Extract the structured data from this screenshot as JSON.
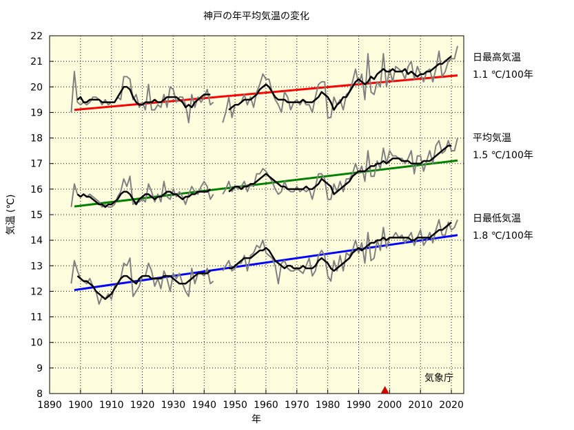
{
  "chart_data": {
    "type": "line",
    "title": "神戸の年平均気温の変化",
    "xlabel": "年",
    "ylabel": "気温 (℃)",
    "xlim": [
      1890,
      2024
    ],
    "ylim": [
      8,
      22
    ],
    "x_ticks": [
      1890,
      1900,
      1910,
      1920,
      1930,
      1940,
      1950,
      1960,
      1970,
      1980,
      1990,
      2000,
      2010,
      2020
    ],
    "y_ticks": [
      8,
      9,
      10,
      11,
      12,
      13,
      14,
      15,
      16,
      17,
      18,
      19,
      20,
      21,
      22
    ],
    "grid": true,
    "credit": "気象庁",
    "marker": {
      "x": 1998.5,
      "y": 8,
      "color": "#cc0000"
    },
    "series": [
      {
        "name": "日最高気温",
        "trend_label": "1.1 ℃/100年",
        "trend_color": "#ff0000",
        "trend": [
          [
            1898,
            19.1
          ],
          [
            2022,
            20.45
          ]
        ],
        "segments": [
          {
            "start": 1897,
            "values": [
              19.0,
              20.6,
              19.4,
              19.3,
              19.4,
              19.3,
              19.4,
              19.6,
              19.6,
              19.5,
              19.3,
              19.5,
              19.3,
              19.4,
              19.4,
              19.6,
              19.5,
              20.4,
              20.4,
              20.3,
              19.5,
              19.7,
              19.2,
              19.4,
              19.1,
              20.1,
              19.1,
              19.1,
              19.3,
              19.2,
              19.7,
              19.2,
              20.0,
              19.9,
              19.4,
              19.6,
              19.6,
              19.3,
              18.6,
              19.7,
              19.2,
              19.6,
              19.4,
              19.6,
              19.9,
              19.3,
              19.4
            ]
          },
          {
            "start": 1946,
            "values": [
              18.6,
              19.0,
              19.6,
              18.8,
              19.3,
              19.3,
              19.4,
              19.7,
              19.3,
              19.6,
              19.2,
              19.8,
              20.1,
              20.5,
              20.3,
              20.3,
              19.8,
              19.5,
              19.3,
              19.0,
              19.8,
              19.6,
              19.1,
              19.4,
              19.5,
              19.3,
              19.5,
              19.3,
              19.3,
              19.0,
              19.6,
              20.1,
              20.2,
              20.2,
              18.8,
              18.8,
              19.6,
              19.3,
              19.5,
              19.1,
              19.7,
              19.8,
              20.2,
              20.7,
              20.1,
              20.5,
              19.5,
              21.3,
              19.8,
              19.7,
              20.2,
              20.0,
              21.3,
              20.0,
              20.7,
              20.2,
              20.8,
              20.7,
              20.6,
              20.3,
              20.8,
              21.0,
              20.3,
              20.8,
              20.5,
              20.2,
              20.6,
              20.7,
              20.2,
              20.7,
              21.4,
              20.4,
              20.6,
              21.0,
              21.1,
              21.1,
              21.6
            ]
          }
        ],
        "moving_avg": [
          {
            "start": 1899,
            "values": [
              19.5,
              19.6,
              19.4,
              19.4,
              19.5,
              19.5,
              19.5,
              19.5,
              19.4,
              19.4,
              19.4,
              19.4,
              19.4,
              19.6,
              19.8,
              20.0,
              20.0,
              19.9,
              19.6,
              19.4,
              19.3,
              19.3,
              19.4,
              19.4,
              19.4,
              19.5,
              19.4,
              19.4,
              19.5,
              19.6,
              19.6,
              19.6,
              19.6,
              19.5,
              19.4,
              19.2,
              19.3,
              19.2,
              19.4,
              19.5,
              19.6,
              19.7,
              19.7,
              19.7
            ]
          },
          {
            "start": 1948,
            "values": [
              19.1,
              19.2,
              19.3,
              19.3,
              19.4,
              19.5,
              19.5,
              19.5,
              19.6,
              19.7,
              19.9,
              20.0,
              20.1,
              20.0,
              19.8,
              19.6,
              19.5,
              19.5,
              19.5,
              19.4,
              19.4,
              19.4,
              19.4,
              19.4,
              19.5,
              19.4,
              19.4,
              19.4,
              19.5,
              19.6,
              19.8,
              19.7,
              19.6,
              19.4,
              19.1,
              19.3,
              19.4,
              19.6,
              19.6,
              19.8,
              20.0,
              20.2,
              20.3,
              20.2,
              20.1,
              20.2,
              20.4,
              20.3,
              20.5,
              20.6,
              20.7,
              20.6,
              20.6,
              20.7,
              20.6,
              20.6,
              20.6,
              20.7,
              20.5,
              20.6,
              20.5,
              20.4,
              20.5,
              20.5,
              20.6,
              20.6,
              20.7,
              20.8,
              20.9,
              20.9,
              21.0,
              21.1,
              21.2
            ]
          }
        ]
      },
      {
        "name": "平均気温",
        "trend_label": "1.5 ℃/100年",
        "trend_color": "#008000",
        "trend": [
          [
            1898,
            15.32
          ],
          [
            2022,
            17.12
          ]
        ],
        "segments": [
          {
            "start": 1897,
            "values": [
              15.3,
              16.2,
              15.8,
              15.7,
              15.8,
              15.7,
              15.8,
              15.7,
              15.6,
              15.5,
              15.3,
              15.4,
              15.3,
              15.3,
              15.4,
              15.7,
              15.9,
              16.4,
              16.1,
              16.5,
              15.4,
              15.5,
              15.5,
              15.6,
              15.5,
              16.2,
              15.9,
              15.5,
              15.8,
              15.5,
              16.3,
              15.7,
              15.6,
              16.0,
              15.7,
              15.9,
              15.7,
              15.4,
              15.8,
              16.1,
              15.9,
              15.8,
              16.1,
              16.3,
              16.1,
              15.6,
              15.8
            ]
          },
          {
            "start": 1946,
            "values": [
              15.8,
              16.0,
              16.3,
              15.9,
              16.1,
              16.0,
              16.1,
              16.3,
              15.9,
              16.2,
              16.1,
              16.6,
              16.6,
              16.8,
              16.7,
              16.5,
              16.3,
              16.0,
              15.8,
              15.9,
              16.3,
              16.0,
              15.9,
              15.9,
              16.1,
              15.9,
              16.0,
              15.9,
              16.0,
              15.6,
              16.1,
              16.6,
              16.6,
              16.4,
              15.6,
              15.6,
              16.2,
              15.9,
              16.3,
              15.9,
              16.4,
              16.4,
              16.6,
              17.0,
              16.6,
              16.9,
              16.3,
              17.5,
              16.5,
              16.5,
              17.1,
              16.8,
              17.6,
              17.0,
              17.5,
              17.3,
              17.3,
              17.2,
              17.2,
              17.0,
              17.2,
              17.5,
              16.6,
              17.3,
              17.3,
              16.7,
              17.1,
              17.5,
              17.0,
              17.7,
              17.9,
              17.4,
              17.5,
              17.9,
              17.5,
              17.5,
              18.0
            ]
          }
        ],
        "moving_avg": [
          {
            "start": 1899,
            "values": [
              15.8,
              15.7,
              15.8,
              15.7,
              15.7,
              15.6,
              15.5,
              15.4,
              15.4,
              15.3,
              15.4,
              15.4,
              15.5,
              15.6,
              15.8,
              15.9,
              15.9,
              15.8,
              15.6,
              15.4,
              15.6,
              15.7,
              15.8,
              15.8,
              15.7,
              15.6,
              15.7,
              15.7,
              15.8,
              15.9,
              15.9,
              15.8,
              15.8,
              15.7,
              15.6,
              15.7,
              15.7,
              15.8,
              15.8,
              15.9,
              15.9,
              15.9,
              15.9,
              16.0
            ]
          },
          {
            "start": 1948,
            "values": [
              15.9,
              16.0,
              16.1,
              16.1,
              16.0,
              16.1,
              16.1,
              16.2,
              16.2,
              16.3,
              16.4,
              16.5,
              16.6,
              16.5,
              16.4,
              16.3,
              16.2,
              16.1,
              16.1,
              16.0,
              16.0,
              16.0,
              16.0,
              16.0,
              16.0,
              16.1,
              16.0,
              16.0,
              16.1,
              16.2,
              16.4,
              16.3,
              16.2,
              16.1,
              15.8,
              15.9,
              16.0,
              16.1,
              16.2,
              16.3,
              16.5,
              16.6,
              16.7,
              16.7,
              16.7,
              16.8,
              16.9,
              16.9,
              17.0,
              17.0,
              17.1,
              17.0,
              17.1,
              17.2,
              17.2,
              17.2,
              17.1,
              17.1,
              17.1,
              17.0,
              17.0,
              17.0,
              17.0,
              17.1,
              17.1,
              17.1,
              17.2,
              17.3,
              17.4,
              17.5,
              17.6,
              17.7,
              17.7
            ]
          }
        ]
      },
      {
        "name": "日最低気温",
        "trend_label": "1.8 ℃/100年",
        "trend_color": "#0000ff",
        "trend": [
          [
            1898,
            12.05
          ],
          [
            2022,
            14.2
          ]
        ],
        "segments": [
          {
            "start": 1897,
            "values": [
              12.3,
              13.2,
              12.8,
              12.5,
              12.4,
              12.3,
              12.5,
              12.2,
              12.0,
              11.5,
              11.8,
              11.7,
              11.9,
              11.7,
              12.2,
              12.3,
              12.5,
              13.1,
              13.0,
              13.3,
              11.8,
              12.0,
              12.2,
              12.6,
              12.6,
              13.1,
              12.8,
              12.2,
              12.5,
              12.1,
              12.8,
              12.5,
              12.0,
              12.7,
              12.5,
              12.7,
              12.3,
              12.0,
              11.8,
              12.9,
              12.3,
              12.7,
              12.7,
              12.6,
              12.9,
              12.3,
              12.4
            ]
          },
          {
            "start": 1946,
            "values": [
              12.8,
              13.0,
              13.2,
              12.8,
              12.9,
              13.1,
              13.1,
              13.4,
              12.8,
              13.4,
              13.5,
              13.8,
              13.7,
              14.0,
              13.5,
              13.4,
              13.3,
              13.0,
              12.3,
              13.1,
              13.2,
              12.9,
              12.8,
              12.8,
              12.9,
              12.8,
              12.7,
              13.0,
              13.3,
              12.6,
              12.8,
              13.4,
              13.6,
              13.4,
              12.6,
              12.4,
              13.2,
              12.8,
              13.4,
              12.8,
              13.5,
              13.4,
              13.6,
              14.0,
              13.5,
              13.9,
              13.1,
              14.3,
              13.2,
              13.3,
              14.0,
              13.6,
              14.5,
              13.7,
              14.1,
              14.1,
              14.3,
              14.1,
              14.2,
              13.9,
              14.1,
              14.3,
              13.8,
              14.1,
              14.4,
              13.8,
              14.0,
              14.3,
              13.9,
              14.4,
              14.8,
              14.2,
              14.2,
              14.7,
              14.4,
              14.5,
              14.8
            ]
          }
        ],
        "moving_avg": [
          {
            "start": 1899,
            "values": [
              12.6,
              12.5,
              12.4,
              12.4,
              12.3,
              12.2,
              12.0,
              11.9,
              11.8,
              11.7,
              11.8,
              11.9,
              12.1,
              12.3,
              12.5,
              12.6,
              12.6,
              12.5,
              12.4,
              12.3,
              12.5,
              12.6,
              12.6,
              12.6,
              12.5,
              12.5,
              12.5,
              12.5,
              12.6,
              12.6,
              12.6,
              12.5,
              12.4,
              12.3,
              12.3,
              12.3,
              12.4,
              12.5,
              12.6,
              12.7,
              12.7,
              12.7,
              12.7,
              12.8
            ]
          },
          {
            "start": 1948,
            "values": [
              12.9,
              12.9,
              13.0,
              13.1,
              13.2,
              13.3,
              13.3,
              13.3,
              13.4,
              13.5,
              13.6,
              13.6,
              13.7,
              13.6,
              13.4,
              13.2,
              13.1,
              13.0,
              12.9,
              13.0,
              13.0,
              12.9,
              12.9,
              12.9,
              13.0,
              12.9,
              12.9,
              12.9,
              13.0,
              13.2,
              13.3,
              13.2,
              13.1,
              12.9,
              12.8,
              12.9,
              13.0,
              13.1,
              13.2,
              13.3,
              13.5,
              13.6,
              13.7,
              13.6,
              13.7,
              13.8,
              13.9,
              13.9,
              14.0,
              14.0,
              14.1,
              14.0,
              14.1,
              14.1,
              14.1,
              14.1,
              14.1,
              14.1,
              14.1,
              14.0,
              14.0,
              14.1,
              14.1,
              14.1,
              14.1,
              14.1,
              14.2,
              14.3,
              14.4,
              14.4,
              14.5,
              14.6,
              14.7
            ]
          }
        ]
      }
    ]
  },
  "colors": {
    "plot_background": "#ffffe0",
    "annual_line": "#808080",
    "moving_average": "#000000",
    "grid": "#000000"
  }
}
